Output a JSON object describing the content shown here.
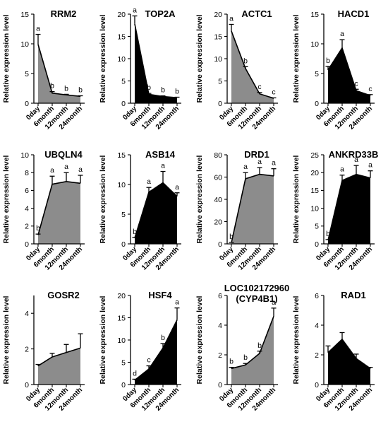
{
  "colors": {
    "gray": "#8c8c8c",
    "black": "#000000",
    "line": "#000000"
  },
  "chart_data": [
    {
      "type": "area",
      "title": "RRM2",
      "title2": "",
      "ylabel": "Relative expression level",
      "fill": "gray",
      "categories": [
        "0day",
        "6month",
        "12month",
        "24month"
      ],
      "values": [
        9.9,
        1.7,
        1.4,
        1.15
      ],
      "errors": [
        1.7,
        0.25,
        0.1,
        0.1
      ],
      "labels": [
        "a",
        "b",
        "b",
        "b"
      ],
      "ylim": [
        0,
        15
      ],
      "yticks": [
        0,
        5,
        10,
        15
      ]
    },
    {
      "type": "area",
      "title": "TOP2A",
      "title2": "",
      "ylabel": "Relative expression level",
      "fill": "black",
      "categories": [
        "0day",
        "6month",
        "12month",
        "24month"
      ],
      "values": [
        17.8,
        2.0,
        1.5,
        1.25
      ],
      "errors": [
        1.8,
        0.2,
        0.15,
        0.1
      ],
      "labels": [
        "a",
        "b",
        "b",
        "b"
      ],
      "ylim": [
        0,
        20
      ],
      "yticks": [
        0,
        5,
        10,
        15,
        20
      ]
    },
    {
      "type": "area",
      "title": "ACTC1",
      "title2": "",
      "ylabel": "Relative expression level",
      "fill": "gray",
      "categories": [
        "0day",
        "6month",
        "12month",
        "24month"
      ],
      "values": [
        16.2,
        7.8,
        2.1,
        1.1
      ],
      "errors": [
        1.5,
        0.4,
        0.3,
        0.1
      ],
      "labels": [
        "a",
        "b",
        "c",
        "c"
      ],
      "ylim": [
        0,
        20
      ],
      "yticks": [
        0,
        5,
        10,
        15,
        20
      ]
    },
    {
      "type": "area",
      "title": "HACD1",
      "title2": "",
      "ylabel": "Relative expression level",
      "fill": "black",
      "categories": [
        "0day",
        "6month",
        "12month",
        "24month"
      ],
      "values": [
        5.6,
        9.3,
        2.1,
        1.3
      ],
      "errors": [
        0.6,
        1.4,
        0.25,
        0.15
      ],
      "labels": [
        "b",
        "a",
        "c",
        "c"
      ],
      "ylim": [
        0,
        15
      ],
      "yticks": [
        0,
        5,
        10,
        15
      ]
    },
    {
      "type": "area",
      "title": "UBQLN4",
      "title2": "",
      "ylabel": "Relative expression level",
      "fill": "gray",
      "categories": [
        "0day",
        "6month",
        "12month",
        "24month"
      ],
      "values": [
        1.0,
        6.7,
        7.0,
        6.8
      ],
      "errors": [
        0.1,
        0.9,
        1.0,
        0.9
      ],
      "labels": [
        "b",
        "a",
        "a",
        "a"
      ],
      "ylim": [
        0,
        10
      ],
      "yticks": [
        0,
        2,
        4,
        6,
        8,
        10
      ]
    },
    {
      "type": "area",
      "title": "ASB14",
      "title2": "",
      "ylabel": "Relative expression level",
      "fill": "black",
      "categories": [
        "0day",
        "6month",
        "12month",
        "24month"
      ],
      "values": [
        1.0,
        8.7,
        10.3,
        8.0
      ],
      "errors": [
        0.1,
        0.8,
        1.9,
        0.6
      ],
      "labels": [
        "b",
        "a",
        "a",
        "a"
      ],
      "ylim": [
        0,
        15
      ],
      "yticks": [
        0,
        5,
        10,
        15
      ]
    },
    {
      "type": "area",
      "title": "DRD1",
      "title2": "",
      "ylabel": "Relative expression level",
      "fill": "gray",
      "categories": [
        "0day",
        "6month",
        "12month",
        "24month"
      ],
      "values": [
        1.0,
        58.5,
        62.5,
        61.0
      ],
      "errors": [
        0.3,
        5.5,
        6.0,
        6.5
      ],
      "labels": [
        "b",
        "a",
        "a",
        "a"
      ],
      "ylim": [
        0,
        80
      ],
      "yticks": [
        0,
        20,
        40,
        60,
        80
      ]
    },
    {
      "type": "area",
      "title": "ANKRD33B",
      "title2": "",
      "ylabel": "Relative expression level",
      "fill": "black",
      "categories": [
        "0day",
        "6month",
        "12month",
        "24month"
      ],
      "values": [
        1.0,
        17.8,
        19.5,
        18.5
      ],
      "errors": [
        0.2,
        1.5,
        2.5,
        2.0
      ],
      "labels": [
        "b",
        "a",
        "a",
        "a"
      ],
      "ylim": [
        0,
        25
      ],
      "yticks": [
        0,
        5,
        10,
        15,
        20,
        25
      ]
    },
    {
      "type": "area",
      "title": "GOSR2",
      "title2": "",
      "ylabel": "Relative expression level",
      "fill": "gray",
      "categories": [
        "0day",
        "6month",
        "12month",
        "24month"
      ],
      "values": [
        1.05,
        1.55,
        1.8,
        2.05
      ],
      "errors": [
        0.08,
        0.2,
        0.45,
        0.8
      ],
      "labels": [
        "",
        "",
        "",
        ""
      ],
      "ylim": [
        0,
        5
      ],
      "yticks": [
        0,
        2,
        4
      ]
    },
    {
      "type": "area",
      "title": "HSF4",
      "title2": "",
      "ylabel": "Relative expression level",
      "fill": "black",
      "categories": [
        "0day",
        "6month",
        "12month",
        "24month"
      ],
      "values": [
        1.0,
        3.5,
        8.2,
        14.5
      ],
      "errors": [
        0.2,
        0.7,
        1.0,
        2.7
      ],
      "labels": [
        "d",
        "c",
        "b",
        "a"
      ],
      "ylim": [
        0,
        20
      ],
      "yticks": [
        0,
        5,
        10,
        15,
        20
      ]
    },
    {
      "type": "area",
      "title": "LOC102172960",
      "title2": "(CYP4B1)",
      "ylabel": "Relative expression level",
      "fill": "gray",
      "categories": [
        "0day",
        "6month",
        "12month",
        "24month"
      ],
      "values": [
        1.08,
        1.32,
        2.1,
        4.6
      ],
      "errors": [
        0.08,
        0.1,
        0.15,
        0.55
      ],
      "labels": [
        "b",
        "b",
        "b",
        "a"
      ],
      "ylim": [
        0,
        6
      ],
      "yticks": [
        0,
        2,
        4,
        6
      ]
    },
    {
      "type": "area",
      "title": "RAD1",
      "title2": "",
      "ylabel": "Relative expression level",
      "fill": "black",
      "categories": [
        "0day",
        "6month",
        "12month",
        "24month"
      ],
      "values": [
        2.15,
        3.05,
        1.75,
        1.08
      ],
      "errors": [
        0.45,
        0.45,
        0.3,
        0.08
      ],
      "labels": [
        "",
        "",
        "",
        ""
      ],
      "ylim": [
        0,
        6
      ],
      "yticks": [
        0,
        2,
        4,
        6
      ]
    }
  ]
}
